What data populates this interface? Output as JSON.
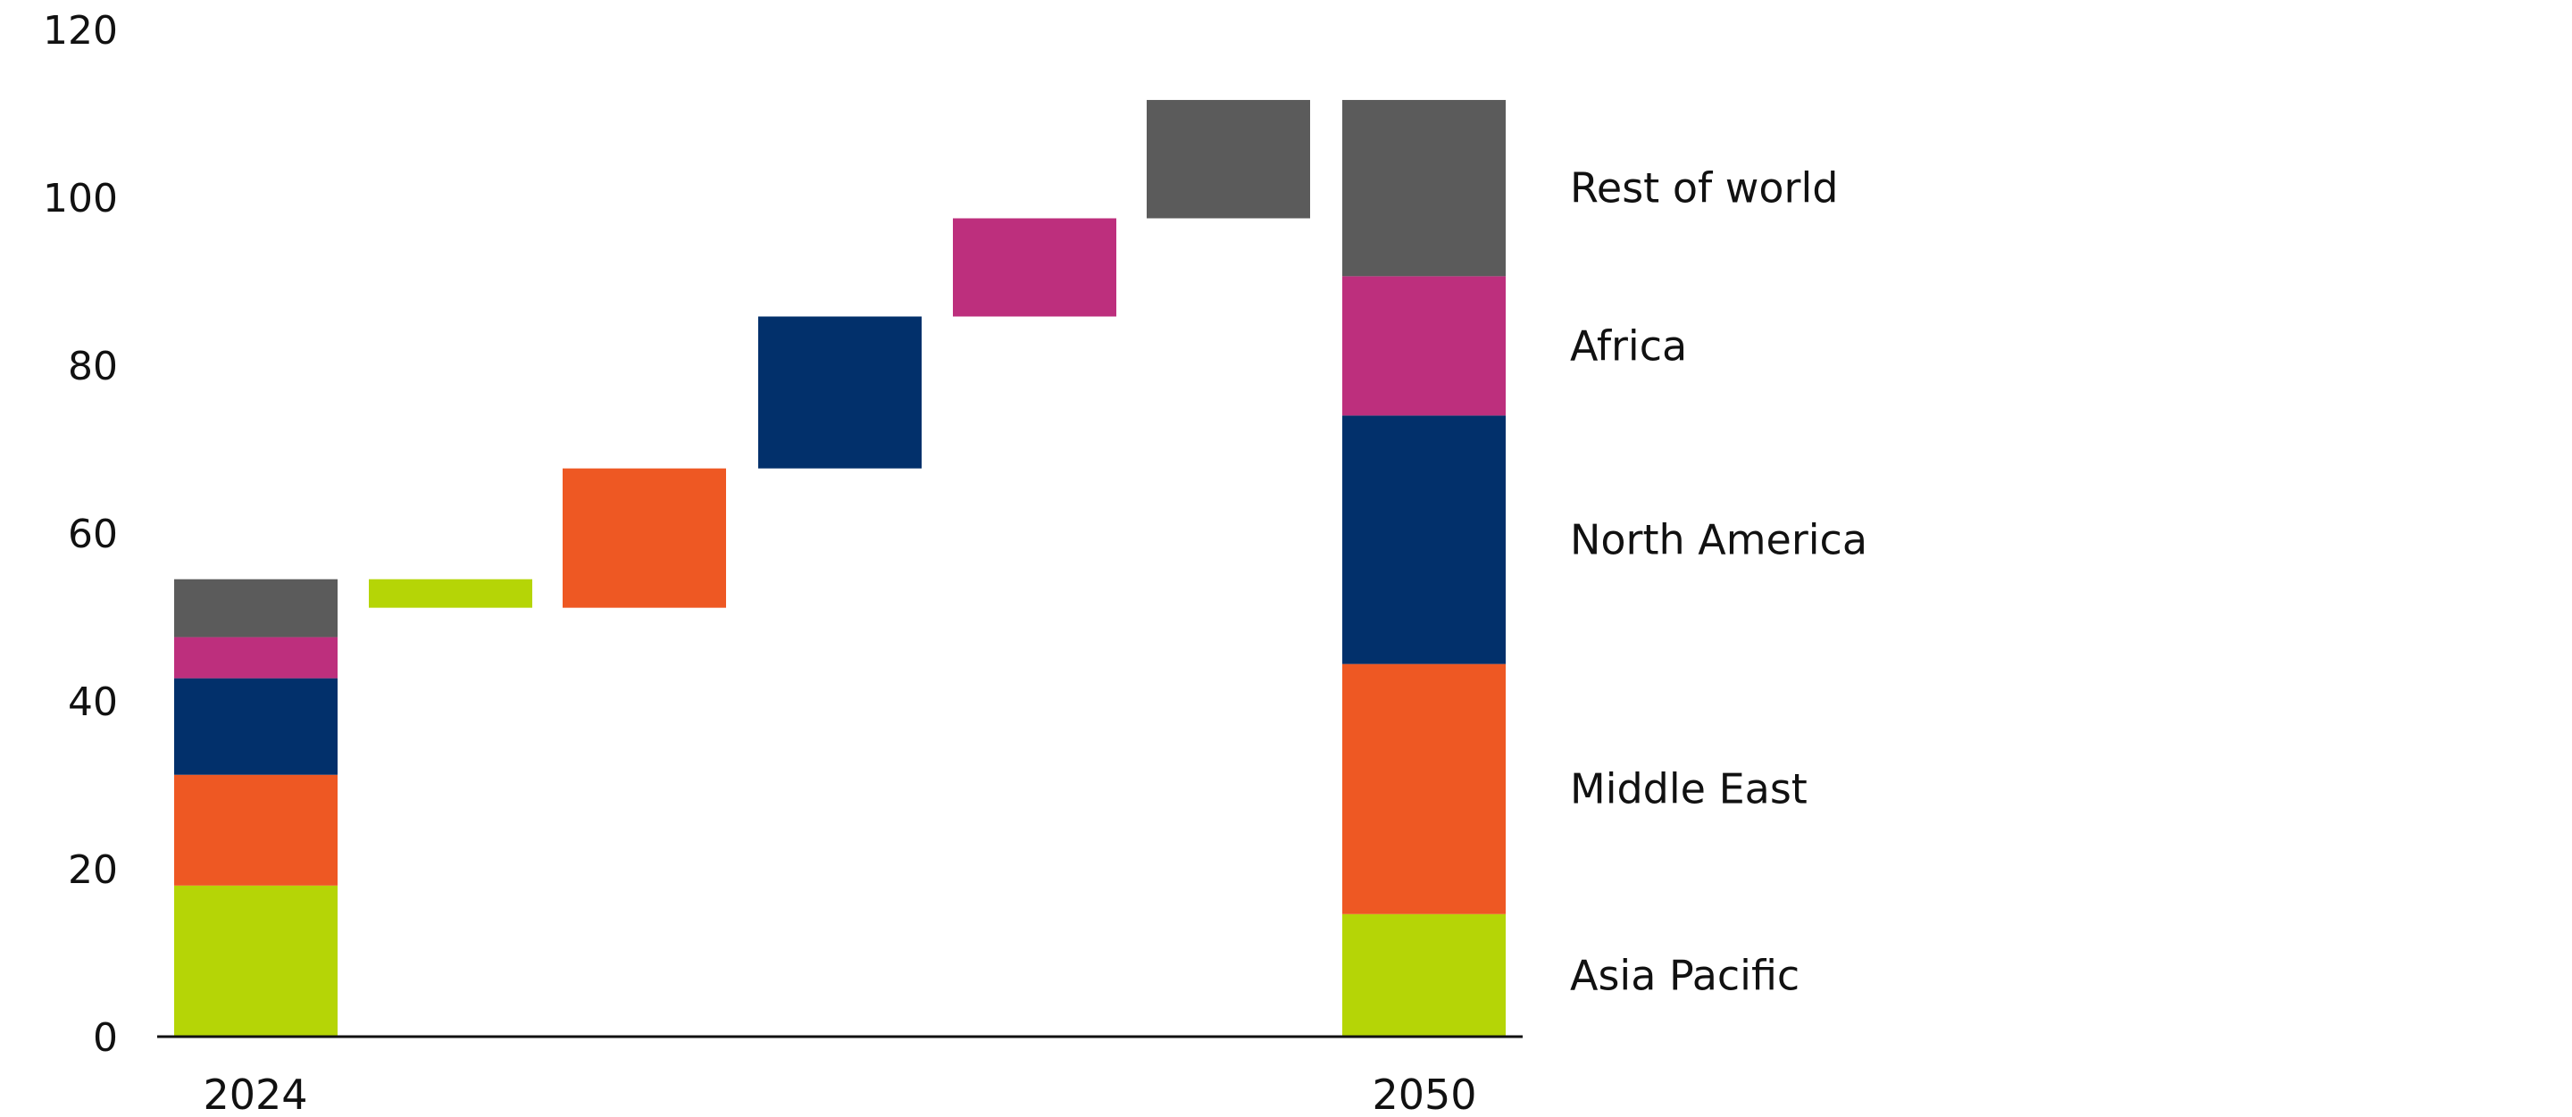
{
  "chart_data": {
    "type": "bar",
    "subtype": "waterfall-stacked",
    "title": "",
    "xlabel": "",
    "ylabel": "",
    "ylim": [
      0,
      120
    ],
    "yticks": [
      "0",
      "20",
      "40",
      "60",
      "80",
      "100",
      "120"
    ],
    "grid": false,
    "legend_placement": "right",
    "categories": [
      "2024",
      "",
      "",
      "",
      "",
      "",
      "2050"
    ],
    "series": [
      {
        "name": "Asia Pacific",
        "color": "#b5d506",
        "start": 18.0,
        "change": -3.4,
        "end": 14.6
      },
      {
        "name": "Middle East",
        "color": "#ee5823",
        "start": 13.2,
        "change": 16.6,
        "end": 29.8
      },
      {
        "name": "North America",
        "color": "#02306b",
        "start": 11.5,
        "change": 18.1,
        "end": 29.6
      },
      {
        "name": "Africa",
        "color": "#bd2f7d",
        "start": 4.9,
        "change": 11.7,
        "end": 16.6
      },
      {
        "name": "Rest of world",
        "color": "#5b5b5b",
        "start": 6.9,
        "change": 14.1,
        "end": 21.0
      }
    ]
  }
}
